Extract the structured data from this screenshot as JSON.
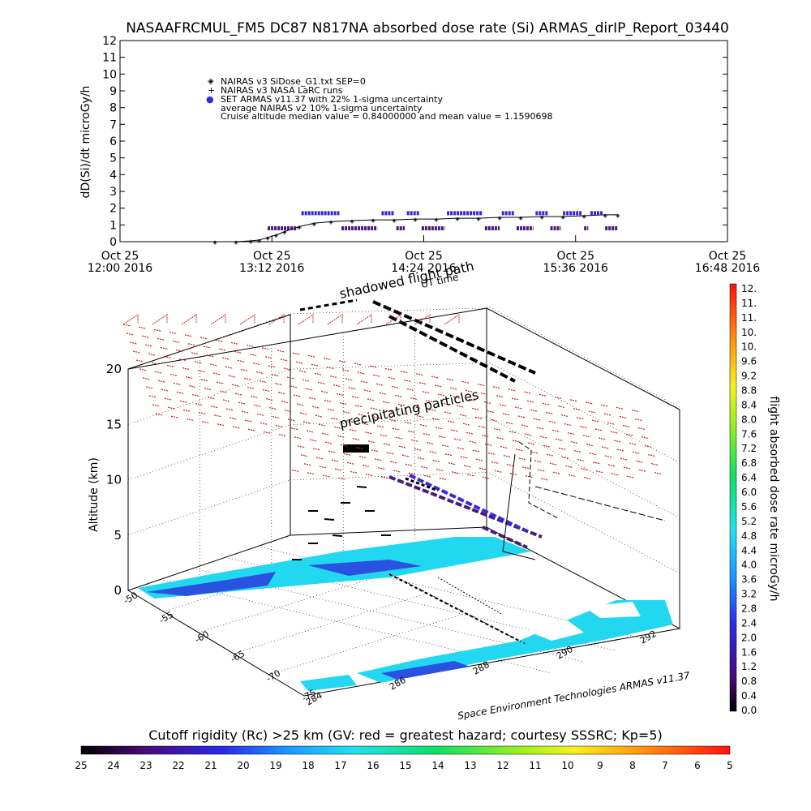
{
  "title": "NASAAFRCMUL_FM5 DC87 N817NA absorbed dose rate (Si) ARMAS_dirIP_Report_03440",
  "colors": {
    "armas": "#3a28d8",
    "armas_alt": "#4a1a7a",
    "nairas": "#000000",
    "shadow_grid": "#c81e1e",
    "ground_cyan": "#22d8f0",
    "ground_blue": "#2a52e0"
  },
  "chart_data": [
    {
      "type": "line",
      "ylabel": "dD(Si)/dt microGy/h",
      "ylim": [
        0,
        12
      ],
      "y_ticks": [
        "0",
        "1",
        "2",
        "3",
        "4",
        "5",
        "6",
        "7",
        "8",
        "9",
        "10",
        "11",
        "12"
      ],
      "x_ticks": [
        {
          "date": "Oct 25",
          "time": "12:00 2016"
        },
        {
          "date": "Oct 25",
          "time": "13:12 2016"
        },
        {
          "date": "Oct 25",
          "time": "14:24 2016"
        },
        {
          "date": "Oct 25",
          "time": "15:36 2016"
        },
        {
          "date": "Oct 25",
          "time": "16:48 2016"
        }
      ],
      "xlim_minutes_from_1200": [
        0,
        288
      ],
      "legend": [
        {
          "symbol": "◈",
          "text": "NAIRAS v3 SiDose_G1.txt SEP=0"
        },
        {
          "symbol": "+",
          "text": "NAIRAS v3 NASA LaRC runs"
        },
        {
          "symbol": "●",
          "text": "SET ARMAS v11.37 with 22% 1-sigma uncertainty"
        },
        {
          "symbol": "",
          "text": "average NAIRAS v2 10% 1-sigma uncertainty"
        },
        {
          "symbol": "",
          "text": "Cruise altitude median value = 0.84000000 and mean value = 1.1590698"
        }
      ],
      "series": [
        {
          "name": "NAIRAS v3 SiDose_G1.txt SEP=0",
          "x_minutes": [
            45,
            55,
            62,
            66,
            70,
            74,
            78,
            85,
            92,
            100,
            110,
            120,
            130,
            140,
            150,
            160,
            170,
            180,
            190,
            200,
            210,
            220,
            230,
            236
          ],
          "values": [
            0,
            0,
            0.05,
            0.1,
            0.25,
            0.4,
            0.6,
            0.9,
            1.1,
            1.2,
            1.25,
            1.3,
            1.3,
            1.35,
            1.35,
            1.4,
            1.4,
            1.45,
            1.45,
            1.5,
            1.5,
            1.55,
            1.6,
            1.6
          ]
        },
        {
          "name": "SET ARMAS v11.37 with 22% 1-sigma uncertainty",
          "segments": [
            {
              "x": [
                86,
                104
              ],
              "value": 1.7
            },
            {
              "x": [
                124,
                130
              ],
              "value": 1.7
            },
            {
              "x": [
                136,
                142
              ],
              "value": 1.7
            },
            {
              "x": [
                155,
                172
              ],
              "value": 1.7
            },
            {
              "x": [
                181,
                187
              ],
              "value": 1.7
            },
            {
              "x": [
                197,
                203
              ],
              "value": 1.7
            },
            {
              "x": [
                210,
                219
              ],
              "value": 1.7
            },
            {
              "x": [
                223,
                229
              ],
              "value": 1.7
            },
            {
              "x": [
                70,
                84
              ],
              "value": 0.8
            },
            {
              "x": [
                105,
                122
              ],
              "value": 0.8
            },
            {
              "x": [
                131,
                135
              ],
              "value": 0.8
            },
            {
              "x": [
                143,
                154
              ],
              "value": 0.8
            },
            {
              "x": [
                173,
                180
              ],
              "value": 0.8
            },
            {
              "x": [
                188,
                196
              ],
              "value": 0.8
            },
            {
              "x": [
                204,
                209
              ],
              "value": 0.8
            },
            {
              "x": [
                220,
                222
              ],
              "value": 0.8
            },
            {
              "x": [
                230,
                236
              ],
              "value": 0.8
            }
          ]
        }
      ]
    },
    {
      "type": "surface3d",
      "zlabel": "Altitude (km)",
      "z_ticks": [
        "0",
        "5",
        "10",
        "15",
        "20"
      ],
      "lat_ticks": [
        "-50",
        "-55",
        "-60",
        "-65",
        "-70",
        "-75"
      ],
      "lon_ticks": [
        "284",
        "286",
        "288",
        "290",
        "292"
      ],
      "annotations": {
        "shadowed": "shadowed flight path",
        "ut_time": "UT time",
        "precip": "precipitating particles",
        "credit": "Space Environment Technologies ARMAS v11.37"
      }
    }
  ],
  "colorbar_right": {
    "label": "flight absorbed dose rate microGy/h",
    "ticks": [
      "12.",
      "11.",
      "11.",
      "10.",
      "10.",
      "9.6",
      "9.2",
      "8.8",
      "8.4",
      "8.0",
      "7.6",
      "7.2",
      "6.8",
      "6.4",
      "6.0",
      "5.6",
      "5.2",
      "4.8",
      "4.4",
      "4.0",
      "3.6",
      "3.2",
      "2.8",
      "2.4",
      "2.0",
      "1.6",
      "1.2",
      "0.8",
      "0.4",
      "0.0"
    ]
  },
  "colorbar_bottom": {
    "title": "Cutoff rigidity (Rc) >25 km (GV: red = greatest hazard; courtesy SSSRC; Kp=5)",
    "ticks": [
      "25",
      "24",
      "23",
      "22",
      "21",
      "20",
      "19",
      "18",
      "17",
      "16",
      "15",
      "14",
      "13",
      "12",
      "11",
      "10",
      "9",
      "8",
      "7",
      "6",
      "5"
    ]
  }
}
